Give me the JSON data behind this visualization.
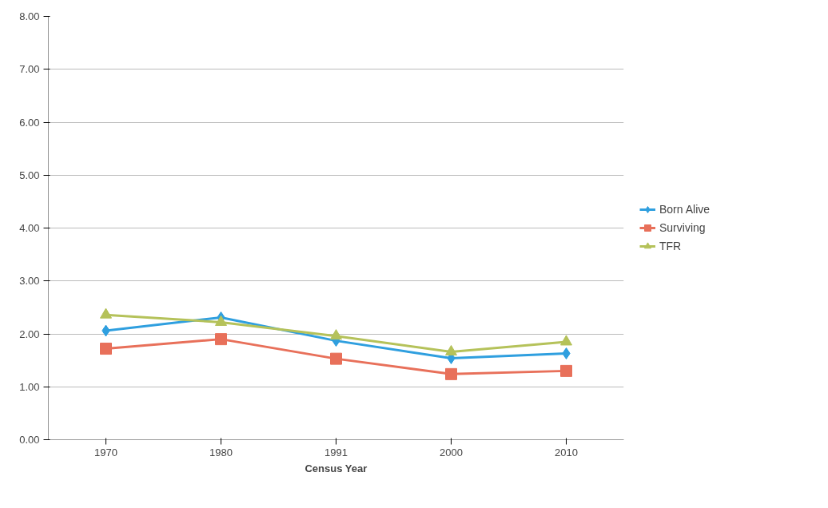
{
  "chart_data": {
    "type": "line",
    "xlabel": "Census Year",
    "categories": [
      "1970",
      "1980",
      "1991",
      "2000",
      "2010"
    ],
    "series": [
      {
        "name": "Born Alive",
        "color": "#2f9fdf",
        "marker": "diamond",
        "values": [
          2.06,
          2.31,
          1.87,
          1.54,
          1.63
        ]
      },
      {
        "name": "Surviving",
        "color": "#e8705a",
        "marker": "square",
        "values": [
          1.72,
          1.9,
          1.53,
          1.24,
          1.3
        ]
      },
      {
        "name": "TFR",
        "color": "#b5c25a",
        "marker": "triangle",
        "values": [
          2.36,
          2.22,
          1.96,
          1.66,
          1.85
        ]
      }
    ],
    "ylim": [
      0,
      8
    ],
    "yticks": [
      {
        "value": 0,
        "label": "0.00"
      },
      {
        "value": 1,
        "label": "1.00"
      },
      {
        "value": 2,
        "label": "2.00"
      },
      {
        "value": 3,
        "label": "3.00"
      },
      {
        "value": 4,
        "label": "4.00"
      },
      {
        "value": 5,
        "label": "5.00"
      },
      {
        "value": 6,
        "label": "6.00"
      },
      {
        "value": 7,
        "label": "7.00"
      },
      {
        "value": 8,
        "label": "8.00"
      }
    ],
    "grid": "y",
    "legend": "right",
    "line_style": "solid"
  }
}
